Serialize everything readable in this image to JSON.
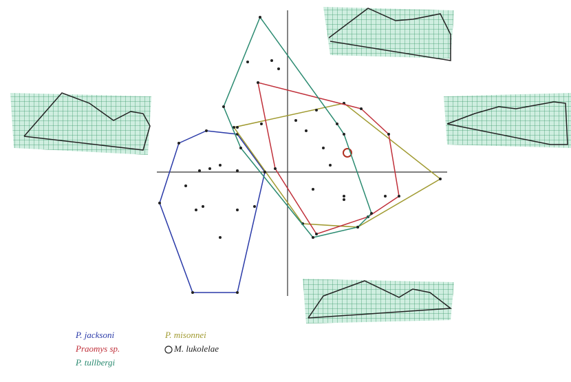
{
  "chart_data": {
    "type": "scatter",
    "xlim": [
      -10,
      12
    ],
    "ylim": [
      -9,
      12
    ],
    "series": [
      {
        "name": "P. jacksoni",
        "color": "#2a3aa8",
        "x": [
          -5.9,
          -7.9,
          -9.3,
          -6.9,
          -3.65,
          -2.4,
          -1.65,
          -3.65,
          -6.4,
          -5.65,
          -4.9,
          -3.65,
          -7.4,
          -6.15,
          -3.65,
          -4.9,
          -6.65
        ],
        "values": [
          3.0,
          2.1,
          -2.25,
          -8.75,
          -8.75,
          -2.5,
          0,
          2.75,
          0.1,
          0.25,
          0.5,
          0.1,
          -1.0,
          -2.5,
          -2.75,
          -4.75,
          -2.75
        ]
      },
      {
        "name": "P. misonnei",
        "color": "#a09a30",
        "x": [
          -3.9,
          4.1,
          11.1,
          5.1,
          1.1,
          1.35,
          2.6,
          1.85,
          4.1,
          7.1
        ],
        "values": [
          3.25,
          5.0,
          -0.5,
          -4.0,
          -3.75,
          3.0,
          1.75,
          -1.25,
          -1.75,
          -1.75
        ]
      },
      {
        "name": "Praomys sp.",
        "color": "#c0303a",
        "x": [
          -2.15,
          5.35,
          7.35,
          8.1,
          5.85,
          2.1,
          -0.9,
          0.6,
          2.1,
          3.1,
          4.1
        ],
        "values": [
          6.5,
          4.6,
          2.75,
          -1.75,
          -3.25,
          -4.5,
          0.25,
          3.75,
          4.5,
          0.5,
          -2.0
        ]
      },
      {
        "name": "M. lukolelae",
        "color": "#b03020",
        "marker": "open-circle",
        "x": [
          4.35
        ],
        "values": [
          1.4
        ]
      },
      {
        "name": "P. tullbergi",
        "color": "#2a8a70",
        "x": [
          -2.0,
          -4.65,
          -3.65,
          -1.65,
          1.85,
          5.1,
          6.1,
          3.6,
          -0.65,
          -2.9,
          -1.15,
          -1.9,
          -3.4,
          4.1
        ],
        "values": [
          11.25,
          4.75,
          3.25,
          0,
          -4.75,
          -4.0,
          -3.0,
          3.5,
          7.5,
          8.0,
          8.1,
          3.5,
          1.75,
          2.75
        ]
      }
    ]
  }
}
